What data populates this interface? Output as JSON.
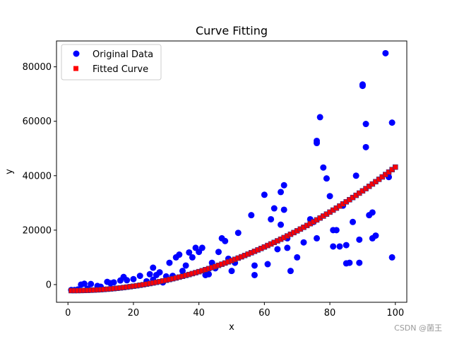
{
  "chart_data": {
    "type": "scatter",
    "title": "Curve Fitting",
    "xlabel": "x",
    "ylabel": "y",
    "xlim": [
      -3.5,
      103.5
    ],
    "ylim": [
      -6500,
      89500
    ],
    "xticks": [
      0,
      20,
      40,
      60,
      80,
      100
    ],
    "yticks": [
      0,
      20000,
      40000,
      60000,
      80000
    ],
    "ytick_labels": [
      "0",
      "20000",
      "40000",
      "60000",
      "80000"
    ],
    "grid": false,
    "legend": "top-left",
    "series": [
      {
        "name": "Original Data",
        "marker": "circle",
        "color": "#0000ff",
        "points": [
          [
            1,
            -2000
          ],
          [
            2,
            -2000
          ],
          [
            3,
            -1800
          ],
          [
            4,
            0
          ],
          [
            5,
            300
          ],
          [
            6,
            -1500
          ],
          [
            7,
            200
          ],
          [
            9,
            -500
          ],
          [
            10,
            -800
          ],
          [
            12,
            1000
          ],
          [
            13,
            500
          ],
          [
            14,
            800
          ],
          [
            16,
            1500
          ],
          [
            17,
            2800
          ],
          [
            18,
            1600
          ],
          [
            20,
            2000
          ],
          [
            22,
            3200
          ],
          [
            24,
            1200
          ],
          [
            25,
            3800
          ],
          [
            26,
            6200
          ],
          [
            26,
            1800
          ],
          [
            27,
            3500
          ],
          [
            28,
            4500
          ],
          [
            29,
            800
          ],
          [
            30,
            3000
          ],
          [
            31,
            8000
          ],
          [
            32,
            3200
          ],
          [
            33,
            10000
          ],
          [
            34,
            11000
          ],
          [
            35,
            5000
          ],
          [
            36,
            7000
          ],
          [
            37,
            11800
          ],
          [
            38,
            10000
          ],
          [
            39,
            13500
          ],
          [
            40,
            12000
          ],
          [
            41,
            13500
          ],
          [
            42,
            3500
          ],
          [
            43,
            3800
          ],
          [
            44,
            8000
          ],
          [
            45,
            6000
          ],
          [
            46,
            12000
          ],
          [
            47,
            17000
          ],
          [
            48,
            16000
          ],
          [
            49,
            9500
          ],
          [
            50,
            5000
          ],
          [
            51,
            8000
          ],
          [
            52,
            19000
          ],
          [
            56,
            25500
          ],
          [
            57,
            7000
          ],
          [
            57,
            3500
          ],
          [
            60,
            33000
          ],
          [
            61,
            7500
          ],
          [
            62,
            24000
          ],
          [
            63,
            28000
          ],
          [
            64,
            13000
          ],
          [
            65,
            34000
          ],
          [
            65,
            22000
          ],
          [
            66,
            36500
          ],
          [
            66,
            27500
          ],
          [
            67,
            13500
          ],
          [
            67,
            17000
          ],
          [
            68,
            5000
          ],
          [
            70,
            10000
          ],
          [
            72,
            15500
          ],
          [
            74,
            24000
          ],
          [
            75,
            23000
          ],
          [
            76,
            52000
          ],
          [
            76,
            52800
          ],
          [
            76,
            17000
          ],
          [
            77,
            61500
          ],
          [
            78,
            43000
          ],
          [
            79,
            39000
          ],
          [
            80,
            32500
          ],
          [
            81,
            20000
          ],
          [
            81,
            14000
          ],
          [
            82,
            20000
          ],
          [
            83,
            14000
          ],
          [
            84,
            29000
          ],
          [
            85,
            14500
          ],
          [
            85,
            7800
          ],
          [
            86,
            8000
          ],
          [
            87,
            23000
          ],
          [
            88,
            40000
          ],
          [
            89,
            16500
          ],
          [
            89,
            8000
          ],
          [
            90,
            73500
          ],
          [
            90,
            73000
          ],
          [
            91,
            59000
          ],
          [
            91,
            50500
          ],
          [
            92,
            25500
          ],
          [
            93,
            26500
          ],
          [
            93,
            17000
          ],
          [
            94,
            18000
          ],
          [
            97,
            85000
          ],
          [
            98,
            39500
          ],
          [
            99,
            59500
          ],
          [
            99,
            10000
          ]
        ]
      },
      {
        "name": "Fitted Curve",
        "marker": "square",
        "color": "#ff0000",
        "edgecolor": "#2a2a8a",
        "x": [
          1,
          2,
          3,
          4,
          5,
          6,
          7,
          8,
          9,
          10,
          11,
          12,
          13,
          14,
          15,
          16,
          17,
          18,
          19,
          20,
          21,
          22,
          23,
          24,
          25,
          26,
          27,
          28,
          29,
          30,
          31,
          32,
          33,
          34,
          35,
          36,
          37,
          38,
          39,
          40,
          41,
          42,
          43,
          44,
          45,
          46,
          47,
          48,
          49,
          50,
          51,
          52,
          53,
          54,
          55,
          56,
          57,
          58,
          59,
          60,
          61,
          62,
          63,
          64,
          65,
          66,
          67,
          68,
          69,
          70,
          71,
          72,
          73,
          74,
          75,
          76,
          77,
          78,
          79,
          80,
          81,
          82,
          83,
          84,
          85,
          86,
          87,
          88,
          89,
          90,
          91,
          92,
          93,
          94,
          95,
          96,
          97,
          98,
          99,
          100
        ],
        "fit": {
          "a": 4.67,
          "b": -13.4,
          "c": -2200
        }
      }
    ]
  },
  "watermark": "CSDN @菌王"
}
